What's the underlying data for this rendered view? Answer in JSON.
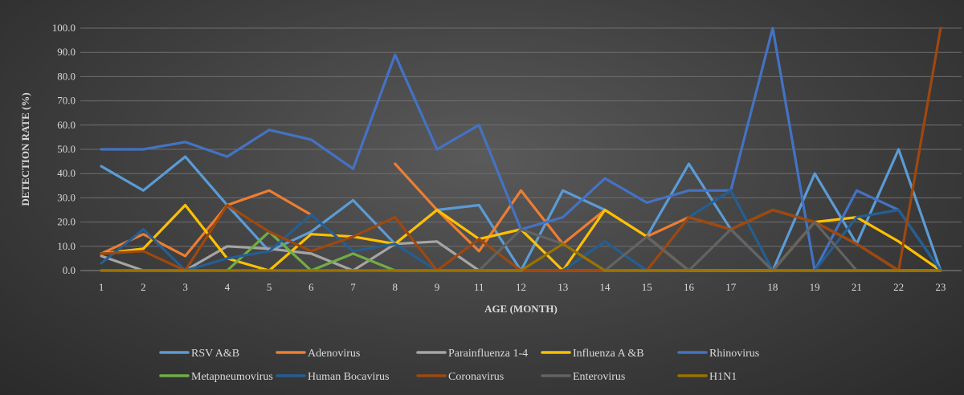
{
  "chart_data": {
    "type": "line",
    "title": "",
    "xlabel": "AGE (MONTH)",
    "ylabel": "DETECTION RATE (%)",
    "ylim": [
      0,
      100
    ],
    "yticks": [
      "0.0",
      "10.0",
      "20.0",
      "30.0",
      "40.0",
      "50.0",
      "60.0",
      "70.0",
      "80.0",
      "90.0",
      "100.0"
    ],
    "categories": [
      "1",
      "2",
      "3",
      "4",
      "5",
      "6",
      "7",
      "8",
      "9",
      "11",
      "12",
      "13",
      "14",
      "15",
      "16",
      "17",
      "18",
      "19",
      "21",
      "22",
      "23"
    ],
    "grid": true,
    "legend_position": "bottom",
    "series": [
      {
        "name": "RSV A&B",
        "color": "#5B9BD5",
        "values": [
          43,
          33,
          47,
          27,
          8,
          16,
          29,
          11,
          25,
          27,
          0,
          33,
          25,
          14,
          44,
          17,
          0,
          40,
          11,
          50,
          0
        ]
      },
      {
        "name": "Adenovirus",
        "color": "#ED7D31",
        "values": [
          7,
          15,
          6,
          27,
          33,
          23,
          null,
          44,
          25,
          8,
          33,
          11,
          25,
          14,
          22,
          17,
          25,
          20,
          11,
          0,
          0
        ]
      },
      {
        "name": "Parainfluenza 1-4",
        "color": "#A5A5A5",
        "values": [
          6,
          0,
          0,
          10,
          9,
          7,
          0,
          11,
          12,
          0,
          0,
          0,
          0,
          0,
          0,
          0,
          0,
          0,
          0,
          0,
          0
        ]
      },
      {
        "name": "Influenza A &B",
        "color": "#FFC000",
        "values": [
          7,
          9,
          27,
          5,
          0,
          15,
          14,
          11,
          25,
          13,
          17,
          0,
          25,
          14,
          0,
          0,
          0,
          20,
          22,
          12,
          0
        ]
      },
      {
        "name": "Rhinovirus",
        "color": "#4472C4",
        "values": [
          50,
          50,
          53,
          47,
          58,
          54,
          42,
          89,
          50,
          60,
          17,
          22,
          38,
          28,
          33,
          33,
          100,
          0,
          33,
          25,
          0
        ]
      },
      {
        "name": "Metapneumovirus",
        "color": "#70AD47",
        "values": [
          0,
          0,
          0,
          0,
          16,
          0,
          7,
          0,
          0,
          0,
          0,
          0,
          0,
          0,
          0,
          0,
          0,
          0,
          0,
          0,
          0
        ]
      },
      {
        "name": "Human Bocavirus",
        "color": "#255E91",
        "values": [
          3,
          17,
          0,
          5,
          8,
          23,
          8,
          11,
          0,
          0,
          0,
          0,
          12,
          0,
          22,
          33,
          0,
          0,
          22,
          25,
          0
        ]
      },
      {
        "name": "Coronavirus",
        "color": "#9E480E",
        "values": [
          7,
          8,
          0,
          27,
          16,
          8,
          14,
          22,
          0,
          13,
          0,
          0,
          0,
          0,
          22,
          17,
          25,
          20,
          11,
          0,
          100
        ]
      },
      {
        "name": "Enterovirus",
        "color": "#636363",
        "values": [
          0,
          0,
          0,
          0,
          0,
          0,
          0,
          0,
          0,
          0,
          17,
          11,
          0,
          14,
          0,
          17,
          0,
          20,
          0,
          0,
          0
        ]
      },
      {
        "name": "H1N1",
        "color": "#997300",
        "values": [
          0,
          0,
          0,
          0,
          0,
          0,
          0,
          0,
          0,
          0,
          0,
          11,
          0,
          0,
          0,
          0,
          0,
          0,
          0,
          0,
          0
        ]
      }
    ]
  }
}
